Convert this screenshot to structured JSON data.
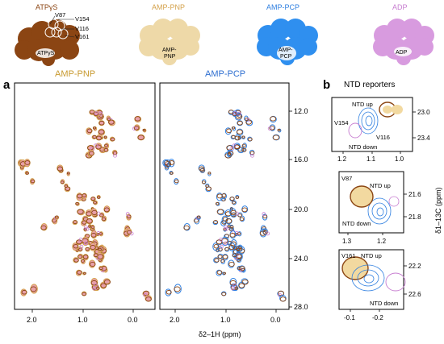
{
  "figure": {
    "panel_a_label": "a",
    "panel_b_label": "b",
    "structures": [
      {
        "label": "ATPγS",
        "color": "#8B4513",
        "residues": [
          "V87",
          "V154",
          "V116",
          "V161"
        ],
        "ligand": "ATPγS"
      },
      {
        "label": "AMP-PNP",
        "color": "#D4A24C",
        "ligand": "AMP-\nPNP"
      },
      {
        "label": "AMP-PCP",
        "color": "#2F7FE0",
        "ligand": "AMP-\nPCP"
      },
      {
        "label": "ADP",
        "color": "#C77DD0",
        "ligand": "ADP"
      }
    ],
    "spectra_titles": {
      "left": "AMP-PNP",
      "right": "AMP-PCP",
      "left_color": "#C89A30",
      "right_color": "#2F6FD0"
    },
    "x_axis": {
      "label": "δ2–1H (ppm)",
      "ticks": [
        "2.0",
        "1.0",
        "0.0"
      ]
    },
    "y_axis_main": {
      "ticks": [
        "12.0",
        "16.0",
        "20.0",
        "24.0",
        "28.0"
      ]
    },
    "ntd": {
      "title": "NTD reporters",
      "y_label": "δ1–13C (ppm)",
      "up_label": "NTD up",
      "down_label": "NTD down",
      "insets": [
        {
          "residues": [
            "V154",
            "V116"
          ],
          "y_ticks": [
            "23.0",
            "23.4"
          ],
          "x_ticks": [
            "1.2",
            "1.1",
            "1.0"
          ]
        },
        {
          "residues": [
            "V87"
          ],
          "y_ticks": [
            "21.6",
            "21.8"
          ],
          "x_ticks": [
            "1.3",
            "1.2"
          ]
        },
        {
          "residues": [
            "V161"
          ],
          "y_ticks": [
            "22.2",
            "22.6"
          ],
          "x_ticks": [
            "-0.1",
            "-0.2"
          ]
        }
      ]
    },
    "colors": {
      "atpgs": "#8B4513",
      "pnp": "#D4A24C",
      "pcp": "#2F7FE0",
      "adp": "#C77DD0",
      "pnp_fill": "#E8A0A8"
    }
  }
}
